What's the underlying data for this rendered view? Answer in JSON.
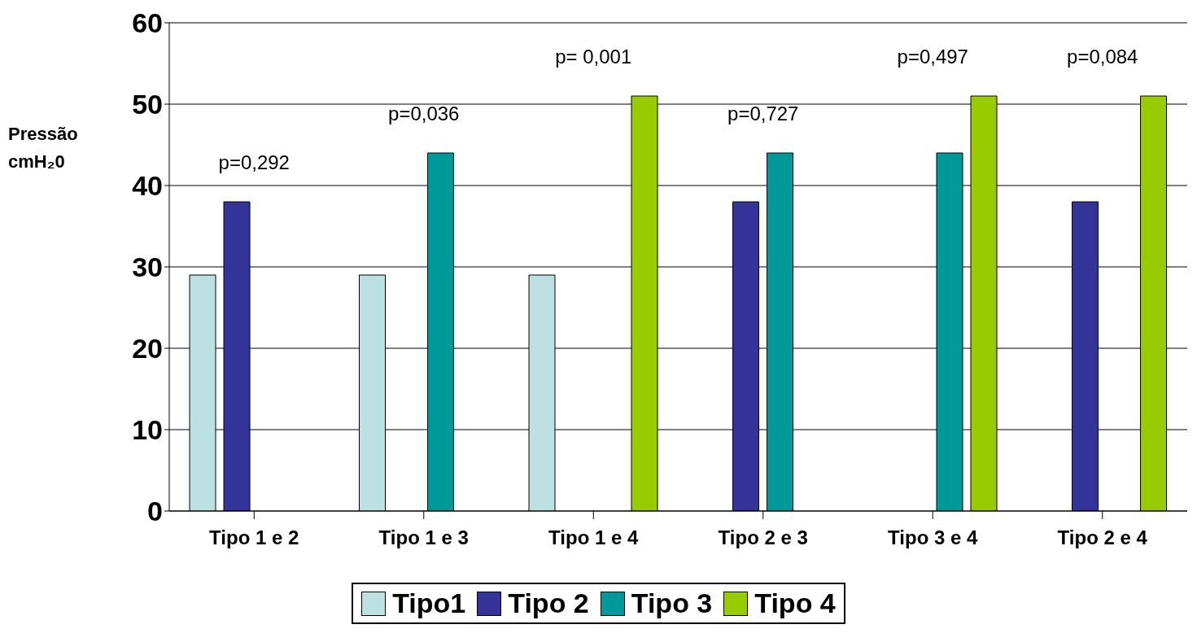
{
  "chart_data": {
    "type": "bar",
    "ylabel": "Pressão cmH₂0",
    "categories": [
      "Tipo 1 e 2",
      "Tipo 1 e 3",
      "Tipo 1 e 4",
      "Tipo 2 e 3",
      "Tipo 3 e 4",
      "Tipo 2 e 4"
    ],
    "series": [
      {
        "name": "Tipo1",
        "color": "#bde0e0",
        "values": [
          29,
          29,
          29,
          null,
          null,
          null
        ]
      },
      {
        "name": "Tipo 2",
        "color": "#333399",
        "values": [
          38,
          null,
          null,
          38,
          null,
          38
        ]
      },
      {
        "name": "Tipo 3",
        "color": "#009999",
        "values": [
          null,
          44,
          null,
          44,
          44,
          null
        ]
      },
      {
        "name": "Tipo 4",
        "color": "#99cc00",
        "values": [
          null,
          null,
          51,
          null,
          51,
          51
        ]
      }
    ],
    "ylim": [
      0,
      60
    ],
    "yticks": [
      0,
      10,
      20,
      30,
      40,
      50,
      60
    ],
    "grid": "y",
    "legend": "bottom",
    "annotations": [
      "p=0,292",
      "p=0,036",
      "p= 0,001",
      "p=0,727",
      "p=0,497",
      "p=0,084"
    ]
  }
}
